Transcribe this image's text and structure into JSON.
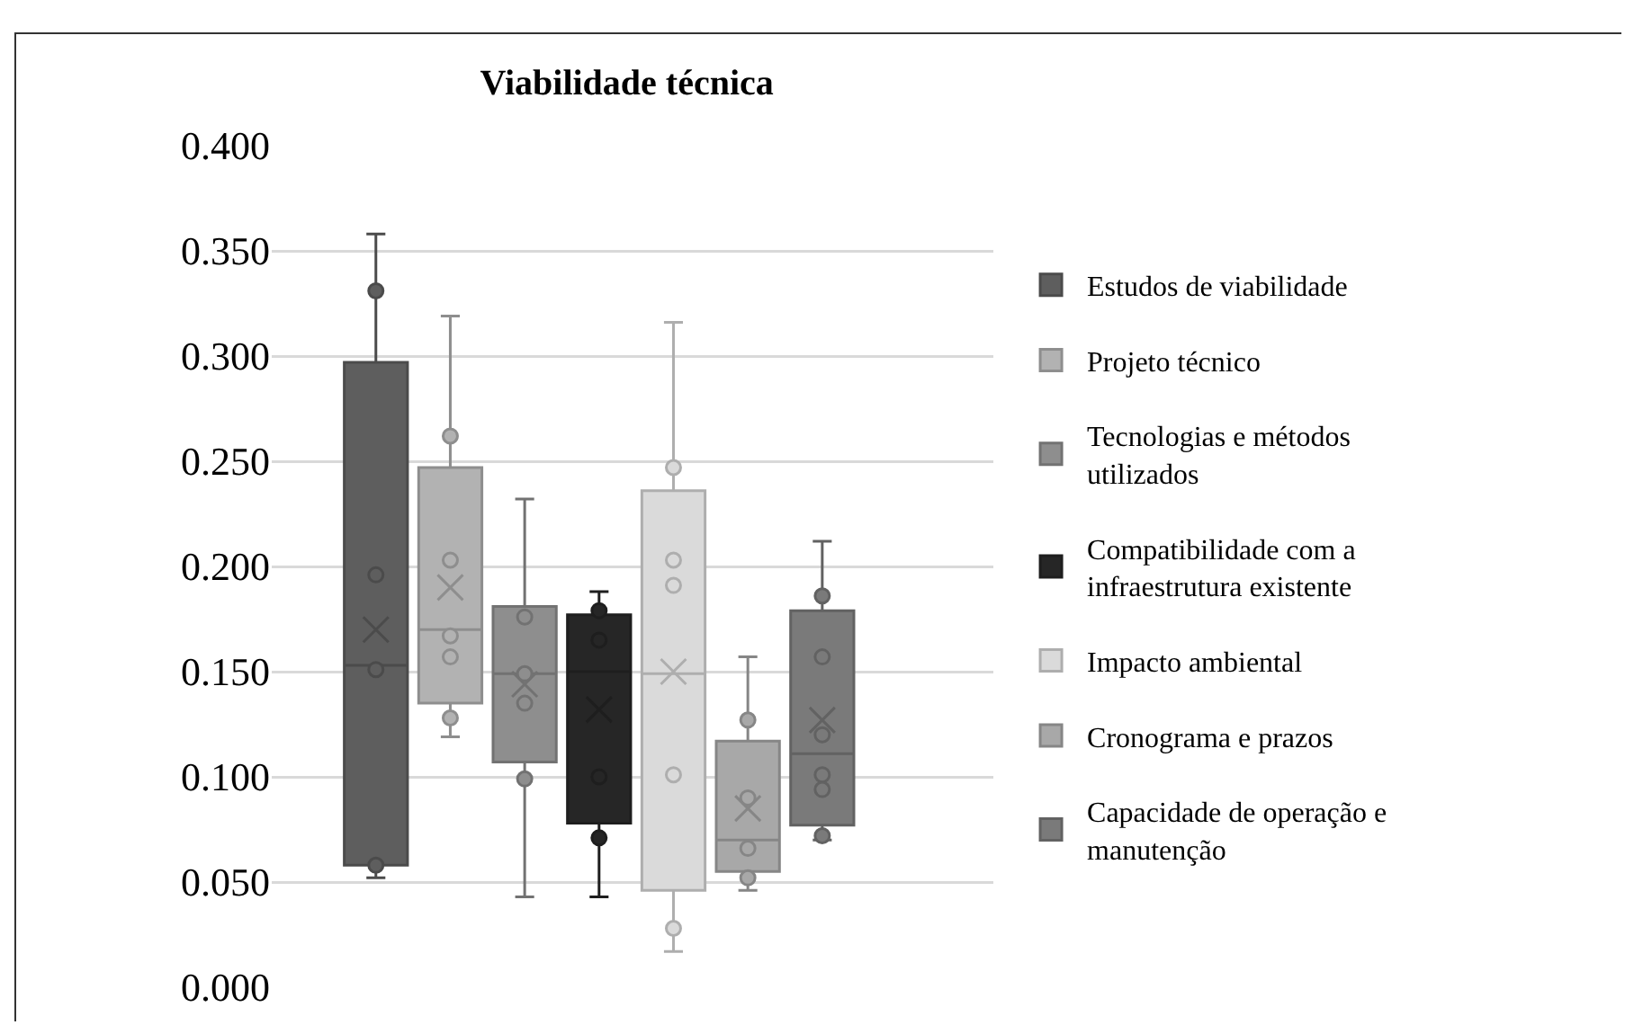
{
  "chart_data": {
    "type": "box",
    "title": "Viabilidade técnica",
    "categories": [
      null
    ],
    "ylim": [
      0,
      0.4
    ],
    "yticks": [
      {
        "value": 0,
        "label": "0.000"
      },
      {
        "value": 0.05,
        "label": "0.050"
      },
      {
        "value": 0.1,
        "label": "0.100"
      },
      {
        "value": 0.15,
        "label": "0.150"
      },
      {
        "value": 0.2,
        "label": "0.200"
      },
      {
        "value": 0.25,
        "label": "0.250"
      },
      {
        "value": 0.3,
        "label": "0.300"
      },
      {
        "value": 0.35,
        "label": "0.350"
      },
      {
        "value": 0.4,
        "label": "0.400"
      }
    ],
    "grid": "y",
    "legend": "right",
    "marker": "circle",
    "tick_labels": "y",
    "series": [
      {
        "name": "Estudos de viabilidade",
        "color": "#5e5e5e",
        "boxes": [
          {
            "low": 0.052,
            "q1": 0.058,
            "median": 0.153,
            "q3": 0.297,
            "high": 0.358,
            "mean": 0.17,
            "outliers": [
              0.331,
              0.196,
              0.151,
              0.058
            ]
          }
        ]
      },
      {
        "name": "Projeto técnico",
        "color": "#b2b2b2",
        "boxes": [
          {
            "low": 0.119,
            "q1": 0.135,
            "median": 0.17,
            "q3": 0.247,
            "high": 0.319,
            "mean": 0.19,
            "outliers": [
              0.262,
              0.203,
              0.167,
              0.157,
              0.128
            ]
          }
        ]
      },
      {
        "name": "Tecnologias e métodos utilizados",
        "color": "#8e8e8e",
        "boxes": [
          {
            "low": 0.043,
            "q1": 0.107,
            "median": 0.149,
            "q3": 0.181,
            "high": 0.232,
            "mean": 0.144,
            "outliers": [
              0.176,
              0.149,
              0.135,
              0.099
            ]
          }
        ]
      },
      {
        "name": "Compatibilidade com a infraestrutura existente",
        "color": "#262626",
        "boxes": [
          {
            "low": 0.043,
            "q1": 0.078,
            "median": 0.15,
            "q3": 0.177,
            "high": 0.188,
            "mean": 0.132,
            "outliers": [
              0.179,
              0.165,
              0.1,
              0.071
            ]
          }
        ]
      },
      {
        "name": "Impacto ambiental",
        "color": "#dadada",
        "boxes": [
          {
            "low": 0.017,
            "q1": 0.046,
            "median": 0.149,
            "q3": 0.236,
            "high": 0.316,
            "mean": 0.15,
            "outliers": [
              0.247,
              0.203,
              0.191,
              0.101,
              0.028
            ]
          }
        ]
      },
      {
        "name": "Cronograma e prazos",
        "color": "#a8a8a8",
        "boxes": [
          {
            "low": 0.046,
            "q1": 0.055,
            "median": 0.07,
            "q3": 0.117,
            "high": 0.157,
            "mean": 0.085,
            "outliers": [
              0.127,
              0.09,
              0.066,
              0.052
            ]
          }
        ]
      },
      {
        "name": "Capacidade de operação e manutenção",
        "color": "#7a7a7a",
        "boxes": [
          {
            "low": 0.07,
            "q1": 0.077,
            "median": 0.111,
            "q3": 0.179,
            "high": 0.212,
            "mean": 0.127,
            "outliers": [
              0.186,
              0.157,
              0.12,
              0.101,
              0.094,
              0.072
            ]
          }
        ]
      }
    ]
  }
}
